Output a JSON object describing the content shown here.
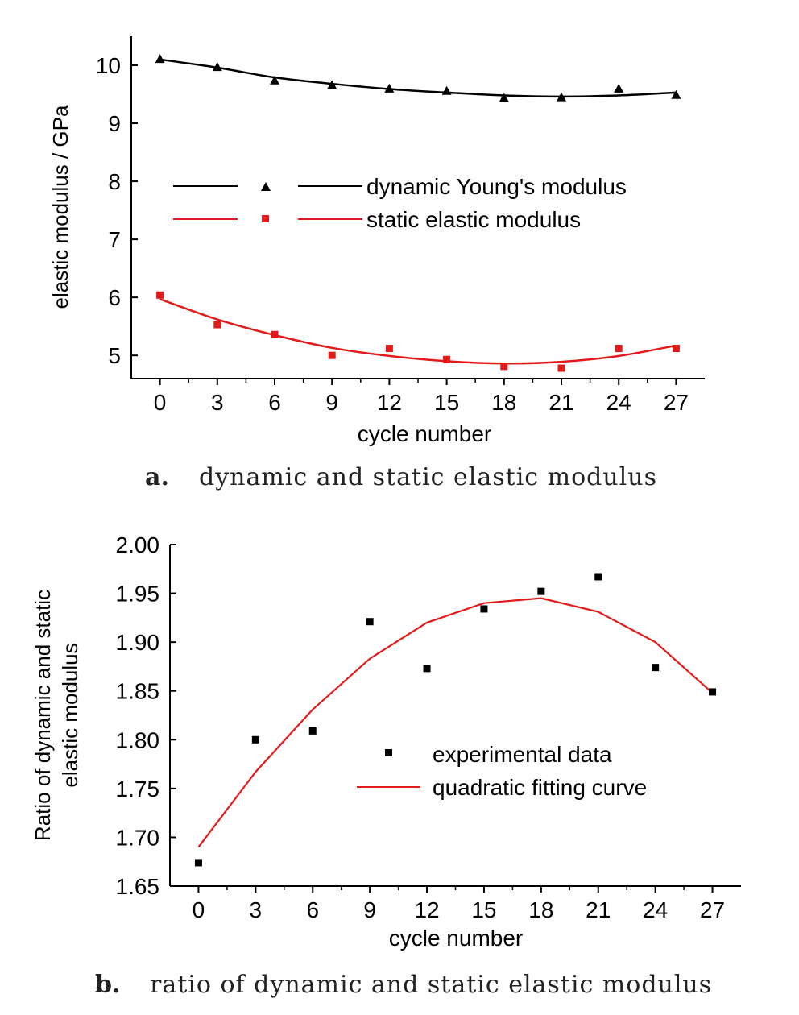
{
  "chart_data": [
    {
      "type": "scatter",
      "xlabel": "cycle number",
      "ylabel": "elastic modulus / GPa",
      "xlim": [
        -1.5,
        28.5
      ],
      "ylim": [
        4.6,
        10.5
      ],
      "xticks": [
        0,
        3,
        6,
        9,
        12,
        15,
        18,
        21,
        24,
        27
      ],
      "xtick_labels": [
        "0",
        "3",
        "6",
        "9",
        "12",
        "15",
        "18",
        "21",
        "24",
        "27"
      ],
      "yticks": [
        5,
        6,
        7,
        8,
        9,
        10
      ],
      "ytick_labels": [
        "5",
        "6",
        "7",
        "8",
        "9",
        "10"
      ],
      "legend_position": "center-left",
      "series": [
        {
          "name": "dynamic Young's modulus",
          "color": "#000000",
          "marker": "triangle",
          "x": [
            0,
            3,
            6,
            9,
            12,
            15,
            18,
            21,
            24,
            27
          ],
          "points": [
            10.11,
            9.97,
            9.74,
            9.66,
            9.6,
            9.56,
            9.44,
            9.45,
            9.6,
            9.49
          ],
          "fit": [
            10.1,
            9.96,
            9.79,
            9.68,
            9.59,
            9.53,
            9.48,
            9.46,
            9.48,
            9.53
          ]
        },
        {
          "name": "static elastic modulus",
          "color": "#e31a1a",
          "marker": "square",
          "x": [
            0,
            3,
            6,
            9,
            12,
            15,
            18,
            21,
            24,
            27
          ],
          "points": [
            6.04,
            5.53,
            5.36,
            5.0,
            5.12,
            4.93,
            4.81,
            4.78,
            5.12,
            5.12
          ],
          "fit": [
            5.97,
            5.62,
            5.35,
            5.13,
            4.99,
            4.9,
            4.86,
            4.89,
            4.99,
            5.17
          ]
        }
      ]
    },
    {
      "type": "scatter",
      "xlabel": "cycle number",
      "ylabel_lines": [
        "Ratio of dynamic and static",
        "elastic modulus"
      ],
      "xlim": [
        -1.5,
        28.5
      ],
      "ylim": [
        1.65,
        2.0
      ],
      "xticks": [
        0,
        3,
        6,
        9,
        12,
        15,
        18,
        21,
        24,
        27
      ],
      "xtick_labels": [
        "0",
        "3",
        "6",
        "9",
        "12",
        "15",
        "18",
        "21",
        "24",
        "27"
      ],
      "yticks": [
        1.65,
        1.7,
        1.75,
        1.8,
        1.85,
        1.9,
        1.95,
        2.0
      ],
      "ytick_labels": [
        "1.65",
        "1.70",
        "1.75",
        "1.80",
        "1.85",
        "1.90",
        "1.95",
        "2.00"
      ],
      "legend_position": "center-right",
      "series": [
        {
          "name": "experimental data",
          "color": "#000000",
          "marker": "square",
          "x": [
            0,
            3,
            6,
            9,
            12,
            15,
            18,
            21,
            24,
            27
          ],
          "values": [
            1.674,
            1.8,
            1.809,
            1.921,
            1.873,
            1.934,
            1.952,
            1.967,
            1.874,
            1.849
          ]
        },
        {
          "name": "quadratic fitting curve",
          "color": "#e31a1a",
          "marker": "line",
          "x": [
            0,
            3,
            6,
            9,
            12,
            15,
            18,
            21,
            24,
            27
          ],
          "values": [
            1.69,
            1.767,
            1.831,
            1.883,
            1.92,
            1.94,
            1.945,
            1.931,
            1.9,
            1.848
          ]
        }
      ]
    }
  ],
  "captions": {
    "a": {
      "letter": "a.",
      "text": "dynamic and static elastic modulus"
    },
    "b": {
      "letter": "b.",
      "text": "ratio of dynamic and static elastic modulus"
    }
  }
}
